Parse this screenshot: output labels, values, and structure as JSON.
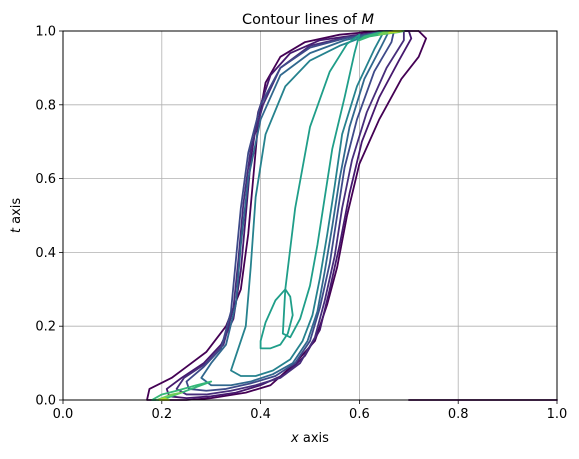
{
  "chart_data": {
    "type": "contour",
    "title": "Contour lines of M",
    "title_parts": {
      "prefix": "Contour lines of ",
      "variable": "M"
    },
    "xlabel": "x axis",
    "xlabel_parts": {
      "variable": "x",
      "suffix": " axis"
    },
    "ylabel": "t axis",
    "ylabel_parts": {
      "variable": "t",
      "suffix": " axis"
    },
    "xlim": [
      0.0,
      1.0
    ],
    "ylim": [
      0.0,
      1.0
    ],
    "xticks": [
      "0.0",
      "0.2",
      "0.4",
      "0.6",
      "0.8",
      "1.0"
    ],
    "yticks": [
      "0.0",
      "0.2",
      "0.4",
      "0.6",
      "0.8",
      "1.0"
    ],
    "grid": true,
    "colormap": "viridis",
    "colors": {
      "level1": "#440154",
      "level2": "#46186e",
      "level3": "#472d7b",
      "level4": "#3e4a89",
      "level5": "#31688e",
      "level6": "#26828e",
      "level7": "#1f9e89",
      "level8": "#35b779",
      "level9": "#6ece58",
      "level10": "#b5de2b",
      "grid": "#b0b0b0",
      "frame": "#000000"
    },
    "series": [
      {
        "level": 1,
        "x": [
          0.72,
          0.735,
          0.72,
          0.685,
          0.64,
          0.6,
          0.575,
          0.555,
          0.535,
          0.51,
          0.47,
          0.42,
          0.37,
          0.3,
          0.25,
          0.2,
          0.17,
          0.175,
          0.22,
          0.25,
          0.29,
          0.33,
          0.36,
          0.375,
          0.385,
          0.395,
          0.41,
          0.44,
          0.49,
          0.56,
          0.64,
          0.7,
          0.72
        ],
        "y": [
          1.0,
          0.98,
          0.93,
          0.87,
          0.76,
          0.64,
          0.5,
          0.36,
          0.26,
          0.16,
          0.1,
          0.04,
          0.02,
          0.005,
          0.0,
          0.0,
          0.0,
          0.03,
          0.06,
          0.09,
          0.13,
          0.2,
          0.3,
          0.45,
          0.6,
          0.75,
          0.86,
          0.93,
          0.97,
          0.99,
          1.0,
          1.0,
          1.0
        ]
      },
      {
        "level": 2,
        "x": [
          0.7,
          0.705,
          0.68,
          0.64,
          0.605,
          0.58,
          0.56,
          0.54,
          0.52,
          0.49,
          0.45,
          0.4,
          0.35,
          0.3,
          0.25,
          0.215,
          0.21,
          0.24,
          0.285,
          0.32,
          0.345,
          0.36,
          0.37,
          0.38,
          0.395,
          0.42,
          0.46,
          0.52,
          0.6,
          0.66,
          0.69,
          0.7
        ],
        "y": [
          1.0,
          0.98,
          0.92,
          0.82,
          0.7,
          0.56,
          0.42,
          0.3,
          0.19,
          0.12,
          0.07,
          0.04,
          0.02,
          0.01,
          0.005,
          0.01,
          0.03,
          0.06,
          0.1,
          0.15,
          0.22,
          0.35,
          0.5,
          0.65,
          0.78,
          0.88,
          0.94,
          0.975,
          0.99,
          1.0,
          1.0,
          1.0
        ]
      },
      {
        "level": 3,
        "x": [
          0.69,
          0.69,
          0.655,
          0.615,
          0.585,
          0.565,
          0.55,
          0.53,
          0.51,
          0.48,
          0.44,
          0.39,
          0.34,
          0.29,
          0.25,
          0.23,
          0.245,
          0.29,
          0.325,
          0.345,
          0.355,
          0.365,
          0.38,
          0.405,
          0.44,
          0.5,
          0.58,
          0.64,
          0.675,
          0.69
        ],
        "y": [
          1.0,
          0.975,
          0.9,
          0.78,
          0.65,
          0.52,
          0.39,
          0.27,
          0.17,
          0.1,
          0.06,
          0.04,
          0.025,
          0.015,
          0.015,
          0.03,
          0.06,
          0.1,
          0.15,
          0.25,
          0.38,
          0.53,
          0.68,
          0.8,
          0.9,
          0.96,
          0.985,
          0.995,
          1.0,
          1.0
        ]
      },
      {
        "level": 4,
        "x": [
          0.67,
          0.665,
          0.63,
          0.595,
          0.57,
          0.555,
          0.54,
          0.52,
          0.5,
          0.47,
          0.43,
          0.38,
          0.33,
          0.29,
          0.255,
          0.25,
          0.285,
          0.32,
          0.34,
          0.35,
          0.36,
          0.375,
          0.4,
          0.44,
          0.5,
          0.57,
          0.63,
          0.66,
          0.67
        ],
        "y": [
          1.0,
          0.97,
          0.89,
          0.76,
          0.63,
          0.5,
          0.37,
          0.25,
          0.16,
          0.1,
          0.065,
          0.045,
          0.03,
          0.025,
          0.03,
          0.05,
          0.09,
          0.14,
          0.24,
          0.38,
          0.52,
          0.67,
          0.8,
          0.9,
          0.955,
          0.98,
          0.995,
          1.0,
          1.0
        ]
      },
      {
        "level": 5,
        "x": [
          0.66,
          0.645,
          0.61,
          0.58,
          0.56,
          0.545,
          0.53,
          0.515,
          0.495,
          0.465,
          0.425,
          0.38,
          0.34,
          0.3,
          0.28,
          0.3,
          0.33,
          0.35,
          0.36,
          0.375,
          0.4,
          0.44,
          0.5,
          0.57,
          0.62,
          0.65,
          0.66
        ],
        "y": [
          1.0,
          0.96,
          0.87,
          0.74,
          0.6,
          0.47,
          0.35,
          0.24,
          0.16,
          0.1,
          0.07,
          0.05,
          0.04,
          0.04,
          0.06,
          0.1,
          0.15,
          0.26,
          0.42,
          0.6,
          0.76,
          0.88,
          0.94,
          0.975,
          0.99,
          1.0,
          1.0
        ]
      },
      {
        "level": 6,
        "x": [
          0.65,
          0.63,
          0.595,
          0.565,
          0.55,
          0.535,
          0.52,
          0.505,
          0.485,
          0.46,
          0.425,
          0.39,
          0.36,
          0.34,
          0.35,
          0.37,
          0.38,
          0.39,
          0.41,
          0.45,
          0.5,
          0.56,
          0.61,
          0.64,
          0.65
        ],
        "y": [
          1.0,
          0.95,
          0.85,
          0.72,
          0.58,
          0.45,
          0.33,
          0.23,
          0.16,
          0.11,
          0.08,
          0.065,
          0.065,
          0.08,
          0.12,
          0.2,
          0.36,
          0.55,
          0.72,
          0.85,
          0.92,
          0.96,
          0.985,
          0.995,
          1.0
        ]
      },
      {
        "level": 7,
        "x": [
          0.6,
          0.59,
          0.57,
          0.545,
          0.53,
          0.515,
          0.5,
          0.48,
          0.46,
          0.445,
          0.45,
          0.47,
          0.5,
          0.54,
          0.575,
          0.6
        ],
        "y": [
          0.99,
          0.94,
          0.82,
          0.68,
          0.55,
          0.42,
          0.31,
          0.22,
          0.17,
          0.18,
          0.3,
          0.52,
          0.74,
          0.89,
          0.965,
          0.99
        ]
      },
      {
        "level": 7,
        "x": [
          0.4,
          0.42,
          0.44,
          0.455,
          0.465,
          0.46,
          0.45,
          0.43,
          0.41,
          0.4,
          0.4
        ],
        "y": [
          0.14,
          0.14,
          0.15,
          0.18,
          0.23,
          0.28,
          0.3,
          0.27,
          0.21,
          0.16,
          0.14
        ]
      },
      {
        "level": 8,
        "x": [
          0.6,
          0.62,
          0.65,
          0.68,
          0.69,
          0.67,
          0.64,
          0.61,
          0.6
        ],
        "y": [
          0.975,
          0.985,
          0.992,
          0.997,
          1.0,
          1.0,
          0.995,
          0.985,
          0.975
        ]
      },
      {
        "level": 8,
        "x": [
          0.2,
          0.23,
          0.27,
          0.3,
          0.27,
          0.23,
          0.2,
          0.18,
          0.2
        ],
        "y": [
          0.0,
          0.015,
          0.035,
          0.05,
          0.04,
          0.025,
          0.015,
          0.0,
          0.0
        ]
      },
      {
        "level": 9,
        "x": [
          0.64,
          0.66,
          0.68,
          0.69,
          0.67,
          0.65,
          0.64
        ],
        "y": [
          0.99,
          0.994,
          0.998,
          1.0,
          1.0,
          0.997,
          0.99
        ]
      },
      {
        "level": 9,
        "x": [
          0.19,
          0.21,
          0.24,
          0.22,
          0.2,
          0.19
        ],
        "y": [
          0.0,
          0.01,
          0.02,
          0.015,
          0.005,
          0.0
        ]
      },
      {
        "level": 10,
        "x": [
          0.66,
          0.675,
          0.685,
          0.67,
          0.66
        ],
        "y": [
          0.995,
          0.998,
          1.0,
          1.0,
          0.995
        ]
      },
      {
        "level": 10,
        "x": [
          0.195,
          0.205,
          0.215,
          0.205,
          0.195
        ],
        "y": [
          0.0,
          0.004,
          0.0,
          0.0,
          0.0
        ]
      },
      {
        "level": 1,
        "x": [
          0.7,
          1.0
        ],
        "y": [
          0.0,
          0.0
        ]
      }
    ]
  }
}
